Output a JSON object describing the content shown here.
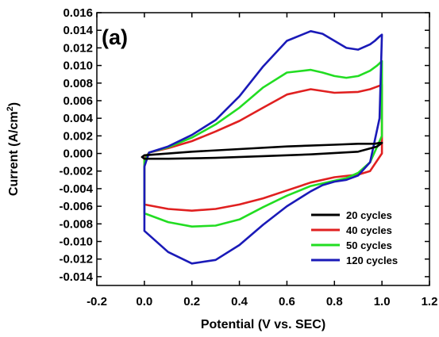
{
  "chart_data": {
    "type": "line",
    "panel_label": "(a)",
    "title": "",
    "xlabel": "Potential (V vs. SEC)",
    "ylabel_main": "Current (A/cm",
    "ylabel_sup": "2",
    "ylabel_close": ")",
    "xlim": [
      -0.2,
      1.2
    ],
    "ylim": [
      -0.015,
      0.016
    ],
    "xticks": [
      -0.2,
      0.0,
      0.2,
      0.4,
      0.6,
      0.8,
      1.0,
      1.2
    ],
    "xtick_labels": [
      "-0.2",
      "0.0",
      "0.2",
      "0.4",
      "0.6",
      "0.8",
      "1.0",
      "1.2"
    ],
    "yticks": [
      -0.014,
      -0.012,
      -0.01,
      -0.008,
      -0.006,
      -0.004,
      -0.002,
      0.0,
      0.002,
      0.004,
      0.006,
      0.008,
      0.01,
      0.012,
      0.014,
      0.016
    ],
    "ytick_labels": [
      "-0.014",
      "-0.012",
      "-0.010",
      "-0.008",
      "-0.006",
      "-0.004",
      "-0.002",
      "0.000",
      "0.002",
      "0.004",
      "0.006",
      "0.008",
      "0.010",
      "0.012",
      "0.014",
      "0.016"
    ],
    "grid": false,
    "legend_position": "bottom-right",
    "series": [
      {
        "name": "20 cycles",
        "color": "#000000",
        "x": [
          -0.01,
          0.0,
          0.2,
          0.4,
          0.6,
          0.8,
          0.9,
          0.97,
          0.99,
          1.0,
          0.98,
          0.9,
          0.7,
          0.5,
          0.3,
          0.1,
          0.0,
          -0.01
        ],
        "y": [
          -0.0004,
          -0.0002,
          0.0002,
          0.0005,
          0.0008,
          0.001,
          0.0011,
          0.0011,
          0.0012,
          0.0012,
          0.0008,
          0.0002,
          -0.0001,
          -0.0003,
          -0.0005,
          -0.0006,
          -0.0006,
          -0.0004
        ]
      },
      {
        "name": "40 cycles",
        "color": "#e02020",
        "x": [
          0.0,
          0.0,
          0.1,
          0.2,
          0.3,
          0.4,
          0.5,
          0.6,
          0.7,
          0.8,
          0.9,
          0.95,
          1.0,
          1.0,
          0.98,
          0.95,
          0.9,
          0.8,
          0.7,
          0.6,
          0.5,
          0.4,
          0.3,
          0.2,
          0.1,
          0.02,
          0.0
        ],
        "y": [
          -0.0056,
          -0.0058,
          -0.0063,
          -0.0065,
          -0.0063,
          -0.0058,
          -0.0051,
          -0.0042,
          -0.0033,
          -0.0027,
          -0.0024,
          -0.002,
          0.0,
          0.0078,
          0.0076,
          0.0073,
          0.007,
          0.0069,
          0.0073,
          0.0067,
          0.0052,
          0.0037,
          0.0025,
          0.0014,
          0.0006,
          0.0001,
          -0.0006
        ]
      },
      {
        "name": "50 cycles",
        "color": "#22dd22",
        "x": [
          0.0,
          0.0,
          0.1,
          0.2,
          0.3,
          0.4,
          0.5,
          0.6,
          0.7,
          0.8,
          0.85,
          0.9,
          0.95,
          1.0,
          1.0,
          0.98,
          0.95,
          0.9,
          0.85,
          0.8,
          0.75,
          0.7,
          0.6,
          0.5,
          0.4,
          0.3,
          0.2,
          0.1,
          0.02,
          0.0
        ],
        "y": [
          -0.0065,
          -0.0068,
          -0.0078,
          -0.0083,
          -0.0082,
          -0.0075,
          -0.0061,
          -0.0048,
          -0.0037,
          -0.0031,
          -0.0028,
          -0.0022,
          -0.001,
          0.002,
          0.0105,
          0.01,
          0.0094,
          0.0088,
          0.0086,
          0.0088,
          0.0092,
          0.0095,
          0.0092,
          0.0075,
          0.0052,
          0.0033,
          0.0018,
          0.0007,
          0.0001,
          -0.0008
        ]
      },
      {
        "name": "120 cycles",
        "color": "#1a1ab8",
        "x": [
          0.0,
          0.0,
          0.1,
          0.2,
          0.3,
          0.4,
          0.5,
          0.6,
          0.7,
          0.75,
          0.8,
          0.85,
          0.9,
          0.95,
          0.99,
          1.0,
          0.99,
          0.97,
          0.95,
          0.9,
          0.85,
          0.8,
          0.75,
          0.7,
          0.6,
          0.5,
          0.4,
          0.3,
          0.2,
          0.1,
          0.02,
          0.0
        ],
        "y": [
          -0.0082,
          -0.0088,
          -0.0112,
          -0.0125,
          -0.0121,
          -0.0104,
          -0.0081,
          -0.006,
          -0.0043,
          -0.0036,
          -0.0032,
          -0.003,
          -0.0025,
          -0.001,
          0.004,
          0.0135,
          0.0133,
          0.0128,
          0.0124,
          0.0118,
          0.012,
          0.0128,
          0.0136,
          0.0139,
          0.0128,
          0.0099,
          0.0065,
          0.0038,
          0.0021,
          0.0008,
          0.0001,
          -0.0015
        ]
      }
    ]
  }
}
